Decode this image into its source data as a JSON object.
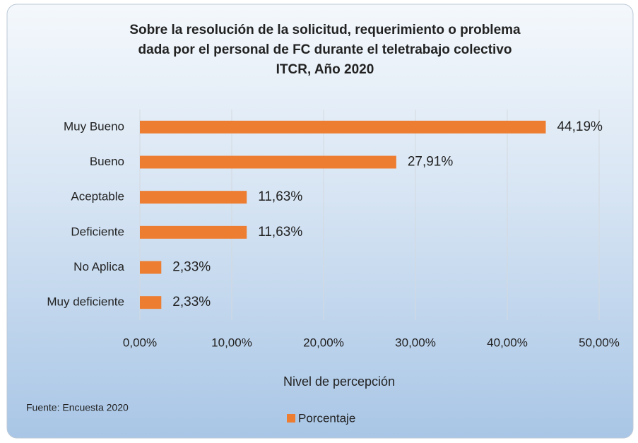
{
  "chart_data": {
    "type": "barh",
    "title": [
      "Sobre la resolución de la solicitud, requerimiento o problema",
      "dada por el personal de FC  durante el teletrabajo colectivo",
      "ITCR, Año 2020"
    ],
    "categories": [
      "Muy Bueno",
      "Bueno",
      "Aceptable",
      "Deficiente",
      "No Aplica",
      "Muy deficiente"
    ],
    "series": [
      {
        "name": "Porcentaje",
        "color": "#ed7d31",
        "values": [
          44.19,
          27.91,
          11.63,
          11.63,
          2.33,
          2.33
        ],
        "value_labels": [
          "44,19%",
          "27,91%",
          "11,63%",
          "11,63%",
          "2,33%",
          "2,33%"
        ]
      }
    ],
    "xlim": [
      0,
      50
    ],
    "xticks": [
      {
        "value": 0,
        "label": "0,00%"
      },
      {
        "value": 10,
        "label": "10,00%"
      },
      {
        "value": 20,
        "label": "20,00%"
      },
      {
        "value": 30,
        "label": "30,00%"
      },
      {
        "value": 40,
        "label": "40,00%"
      },
      {
        "value": 50,
        "label": "50,00%"
      }
    ],
    "xlabel": "Nivel de percepción",
    "source": "Fuente: Encuesta 2020",
    "grid": true,
    "legend": "bottom"
  }
}
